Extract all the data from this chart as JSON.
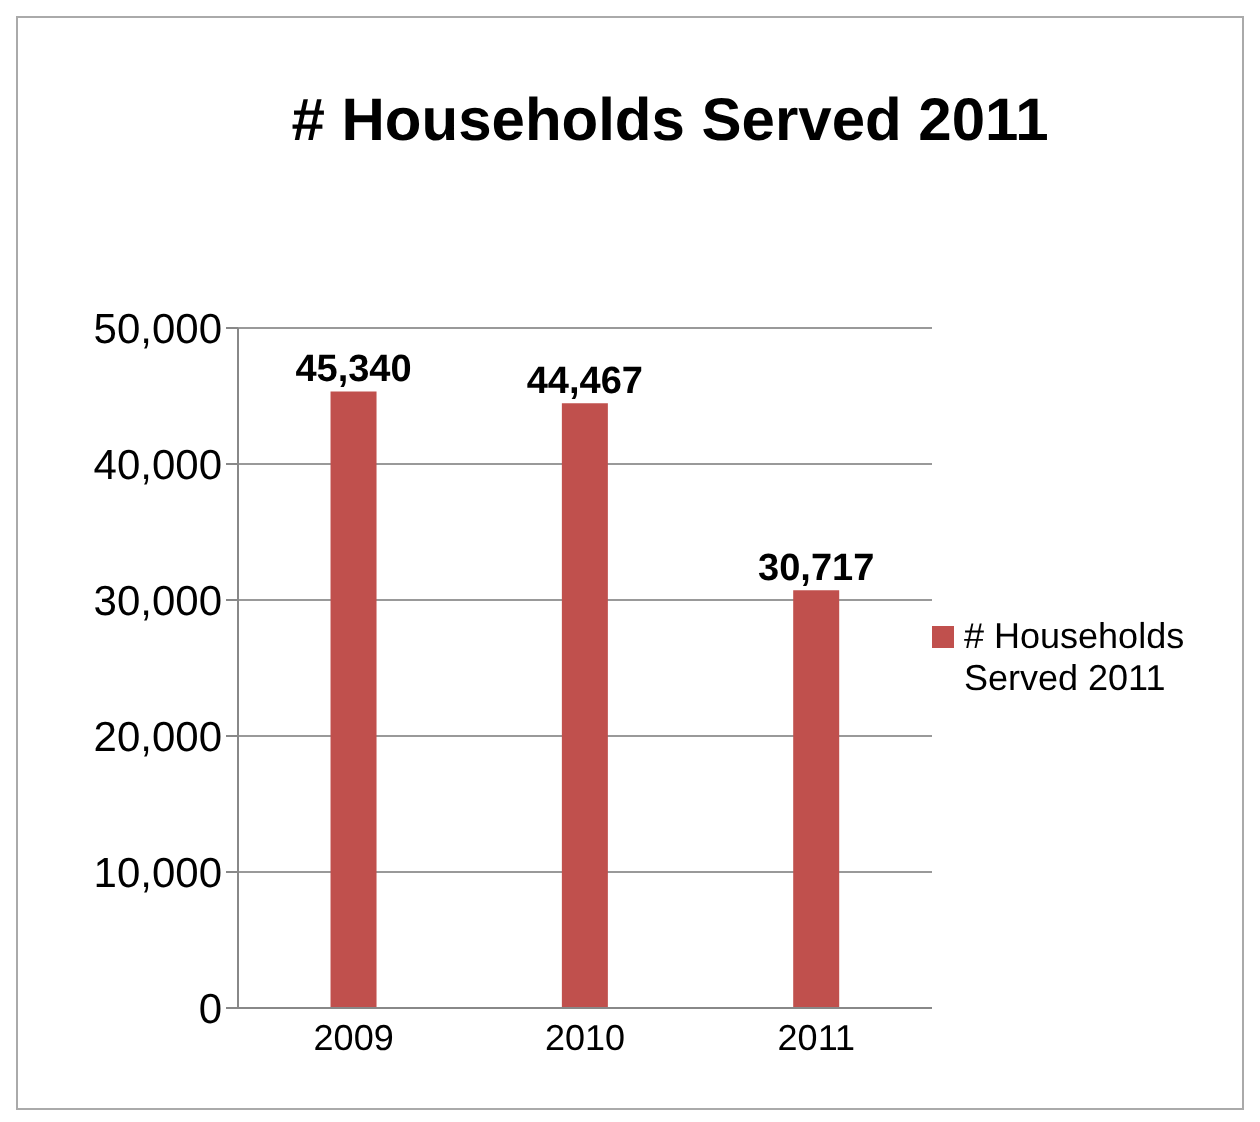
{
  "chart_data": {
    "type": "bar",
    "title": "# Households Served 2011",
    "categories": [
      "2009",
      "2010",
      "2011"
    ],
    "series": [
      {
        "name": "# Households Served 2011",
        "color": "#c0504d",
        "values": [
          45340,
          44467,
          30717
        ],
        "value_labels": [
          "45,340",
          "44,467",
          "30,717"
        ]
      }
    ],
    "ylim": [
      0,
      50000
    ],
    "yticks": [
      {
        "value": 0,
        "label": "0"
      },
      {
        "value": 10000,
        "label": "10,000"
      },
      {
        "value": 20000,
        "label": "20,000"
      },
      {
        "value": 30000,
        "label": "30,000"
      },
      {
        "value": 40000,
        "label": "40,000"
      },
      {
        "value": 50000,
        "label": "50,000"
      }
    ],
    "grid": "y",
    "legend": "right"
  }
}
